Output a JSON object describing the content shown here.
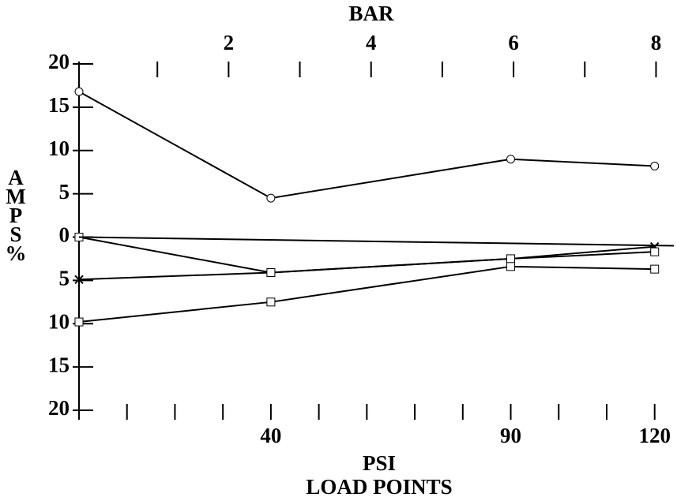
{
  "chart_data": {
    "type": "line",
    "title": "BAR",
    "x_label": "PSI",
    "x_sublabel": "LOAD POINTS",
    "y_label": "AMPS%",
    "color": "#000000",
    "xlim": [
      0,
      124
    ],
    "xticks": [
      40,
      90,
      120
    ],
    "xminorticks": [
      10,
      20,
      30,
      50,
      60,
      70,
      80,
      100,
      110
    ],
    "x2lim": [
      -0.1,
      8.25
    ],
    "x2ticks": [
      2,
      4,
      6,
      8
    ],
    "x2minorticks": [
      1,
      3,
      5,
      7
    ],
    "ylim": [
      -20,
      20
    ],
    "yticks": [
      {
        "value": -20,
        "label": "20"
      },
      {
        "value": -15,
        "label": "15"
      },
      {
        "value": -10,
        "label": "10"
      },
      {
        "value": -5,
        "label": "5"
      },
      0,
      5,
      10,
      15,
      20
    ],
    "series": [
      {
        "marker": "circle",
        "x": [
          0,
          40,
          90,
          120
        ],
        "values": [
          16.8,
          4.5,
          9,
          8.2
        ]
      },
      {
        "marker": "x",
        "x": [
          0,
          40,
          90,
          120
        ],
        "values": [
          -4.9,
          -4.1,
          -2.5,
          -1.1
        ]
      },
      {
        "marker": "square",
        "x": [
          0,
          40,
          90,
          120
        ],
        "values": [
          0,
          -4.1,
          -2.5,
          -1.7
        ]
      },
      {
        "marker": "square",
        "x": [
          0,
          40,
          90,
          120
        ],
        "values": [
          -9.8,
          -7.5,
          -3.4,
          -3.7
        ]
      },
      {
        "marker": "none",
        "x": [
          0,
          124
        ],
        "values": [
          0,
          -1
        ]
      }
    ]
  }
}
